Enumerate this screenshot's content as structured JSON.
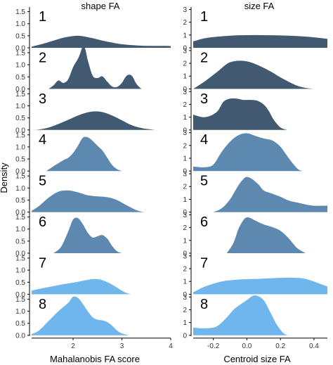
{
  "chart_data": [
    {
      "type": "area",
      "title": "shape FA",
      "xlabel": "Mahalanobis FA score",
      "ylabel": "Density",
      "xlim": [
        1.15,
        4.0
      ],
      "x_ticks": [
        2,
        3,
        4
      ],
      "x_tick_labels": [
        "2",
        "3",
        "4"
      ],
      "y_ticks": [
        0.0,
        0.5,
        1.0,
        1.5
      ],
      "y_tick_labels": [
        "0.0",
        "0.5",
        "1.0",
        "1.5"
      ],
      "ylim": [
        0,
        1.75
      ],
      "grid": false,
      "series": [
        {
          "name": "1",
          "color": "#415a72",
          "x": [
            1.15,
            1.4,
            1.6,
            1.8,
            2.0,
            2.1,
            2.2,
            2.4,
            2.6,
            2.8,
            3.0,
            3.3,
            3.6,
            3.9,
            4.0
          ],
          "values": [
            0.05,
            0.18,
            0.3,
            0.42,
            0.49,
            0.5,
            0.48,
            0.4,
            0.3,
            0.22,
            0.15,
            0.1,
            0.08,
            0.08,
            0.07
          ]
        },
        {
          "name": "2",
          "color": "#415a72",
          "x": [
            1.5,
            1.6,
            1.7,
            1.8,
            1.9,
            2.0,
            2.1,
            2.15,
            2.2,
            2.25,
            2.3,
            2.4,
            2.5,
            2.6,
            2.7,
            2.8,
            2.9,
            3.0,
            3.1,
            3.2,
            3.3,
            3.4
          ],
          "values": [
            0.0,
            0.15,
            0.35,
            0.25,
            0.4,
            0.9,
            1.25,
            1.5,
            1.78,
            1.65,
            1.2,
            0.55,
            0.45,
            0.52,
            0.3,
            0.1,
            0.08,
            0.25,
            0.55,
            0.55,
            0.2,
            0.0
          ]
        },
        {
          "name": "3",
          "color": "#415a72",
          "x": [
            1.15,
            1.3,
            1.5,
            1.7,
            1.9,
            2.1,
            2.3,
            2.45,
            2.6,
            2.8,
            3.0,
            3.2,
            3.4,
            3.6,
            3.7
          ],
          "values": [
            0.0,
            0.02,
            0.1,
            0.25,
            0.42,
            0.6,
            0.73,
            0.77,
            0.74,
            0.6,
            0.4,
            0.2,
            0.08,
            0.02,
            0.0
          ]
        },
        {
          "name": "4",
          "color": "#5d88b0",
          "x": [
            1.45,
            1.6,
            1.8,
            1.9,
            2.0,
            2.1,
            2.2,
            2.3,
            2.4,
            2.5,
            2.6,
            2.7,
            2.8,
            2.9,
            3.0
          ],
          "values": [
            0.0,
            0.2,
            0.45,
            0.55,
            0.75,
            1.05,
            1.38,
            1.4,
            1.25,
            1.05,
            0.85,
            0.55,
            0.25,
            0.08,
            0.0
          ]
        },
        {
          "name": "5",
          "color": "#5d88b0",
          "x": [
            1.15,
            1.3,
            1.5,
            1.7,
            1.9,
            2.1,
            2.3,
            2.5,
            2.7,
            2.9,
            3.1,
            3.3,
            3.45
          ],
          "values": [
            0.05,
            0.25,
            0.6,
            0.85,
            0.9,
            0.82,
            0.7,
            0.65,
            0.62,
            0.5,
            0.28,
            0.08,
            0.0
          ]
        },
        {
          "name": "6",
          "color": "#5d88b0",
          "x": [
            1.6,
            1.75,
            1.9,
            2.0,
            2.1,
            2.2,
            2.3,
            2.4,
            2.5,
            2.6,
            2.7,
            2.8,
            2.9,
            3.0
          ],
          "values": [
            0.0,
            0.25,
            0.9,
            1.4,
            1.45,
            1.2,
            0.85,
            0.65,
            0.7,
            0.75,
            0.6,
            0.3,
            0.08,
            0.0
          ]
        },
        {
          "name": "7",
          "color": "#6fb6ec",
          "x": [
            1.15,
            1.3,
            1.5,
            1.7,
            1.9,
            2.1,
            2.3,
            2.45,
            2.6,
            2.8,
            3.0,
            3.1,
            3.2
          ],
          "values": [
            0.15,
            0.22,
            0.3,
            0.38,
            0.45,
            0.52,
            0.6,
            0.63,
            0.58,
            0.4,
            0.15,
            0.05,
            0.0
          ]
        },
        {
          "name": "8",
          "color": "#6fb6ec",
          "x": [
            1.15,
            1.3,
            1.5,
            1.7,
            1.9,
            2.0,
            2.1,
            2.2,
            2.3,
            2.4,
            2.5,
            2.6,
            2.7,
            2.8,
            2.9,
            3.0,
            3.15
          ],
          "values": [
            0.05,
            0.2,
            0.6,
            1.0,
            1.35,
            1.6,
            1.55,
            1.3,
            1.0,
            0.75,
            0.65,
            0.62,
            0.55,
            0.4,
            0.2,
            0.08,
            0.0
          ]
        }
      ]
    },
    {
      "type": "area",
      "title": "size FA",
      "xlabel": "Centroid size FA",
      "ylabel": "",
      "xlim": [
        -0.32,
        0.48
      ],
      "x_ticks": [
        -0.2,
        0.0,
        0.2,
        0.4
      ],
      "x_tick_labels": [
        "-0.2",
        "0.0",
        "0.2",
        "0.4"
      ],
      "y_ticks": [
        0,
        1,
        2,
        3
      ],
      "y_tick_labels": [
        "0",
        "1",
        "2",
        "3"
      ],
      "ylim": [
        0,
        3.3
      ],
      "grid": false,
      "series": [
        {
          "name": "1",
          "color": "#415a72",
          "x": [
            -0.32,
            -0.25,
            -0.15,
            -0.05,
            0.05,
            0.15,
            0.25,
            0.35,
            0.45,
            0.48
          ],
          "values": [
            0.5,
            0.75,
            0.9,
            0.98,
            1.0,
            0.98,
            0.95,
            0.88,
            0.75,
            0.7
          ]
        },
        {
          "name": "2",
          "color": "#415a72",
          "x": [
            -0.32,
            -0.25,
            -0.18,
            -0.12,
            -0.08,
            -0.04,
            0.0,
            0.05,
            0.1,
            0.15,
            0.2,
            0.25,
            0.3,
            0.35,
            0.4
          ],
          "values": [
            0.0,
            0.6,
            1.3,
            1.95,
            2.15,
            2.2,
            2.15,
            1.95,
            1.65,
            1.3,
            0.9,
            0.55,
            0.25,
            0.08,
            0.0
          ]
        },
        {
          "name": "3",
          "color": "#415a72",
          "x": [
            -0.32,
            -0.25,
            -0.18,
            -0.14,
            -0.1,
            -0.06,
            -0.02,
            0.02,
            0.06,
            0.1,
            0.13,
            0.16,
            0.2,
            0.24
          ],
          "values": [
            1.2,
            1.0,
            1.4,
            2.2,
            2.45,
            2.45,
            2.35,
            2.35,
            2.3,
            2.0,
            1.5,
            0.8,
            0.2,
            0.0
          ]
        },
        {
          "name": "4",
          "color": "#5d88b0",
          "x": [
            -0.32,
            -0.25,
            -0.2,
            -0.15,
            -0.1,
            -0.05,
            0.0,
            0.05,
            0.1,
            0.15,
            0.2,
            0.25,
            0.3,
            0.33
          ],
          "values": [
            0.35,
            0.3,
            0.5,
            1.5,
            2.3,
            2.8,
            2.95,
            2.75,
            2.55,
            2.4,
            1.9,
            1.0,
            0.2,
            0.0
          ]
        },
        {
          "name": "5",
          "color": "#5d88b0",
          "x": [
            -0.2,
            -0.15,
            -0.1,
            -0.05,
            -0.02,
            0.0,
            0.03,
            0.07,
            0.1,
            0.15,
            0.2,
            0.25,
            0.3,
            0.35,
            0.4,
            0.45,
            0.48
          ],
          "values": [
            0.0,
            0.3,
            1.0,
            2.1,
            2.6,
            2.75,
            2.6,
            2.15,
            1.7,
            1.45,
            1.2,
            0.9,
            0.75,
            0.6,
            0.5,
            0.5,
            0.5
          ]
        },
        {
          "name": "6",
          "color": "#5d88b0",
          "x": [
            -0.12,
            -0.08,
            -0.05,
            -0.02,
            0.0,
            0.02,
            0.05,
            0.1,
            0.15,
            0.2,
            0.25,
            0.3,
            0.35
          ],
          "values": [
            0.0,
            0.8,
            1.9,
            2.6,
            2.8,
            2.75,
            2.55,
            2.25,
            2.05,
            1.75,
            1.15,
            0.4,
            0.0
          ]
        },
        {
          "name": "7",
          "color": "#6fb6ec",
          "x": [
            -0.32,
            -0.25,
            -0.15,
            -0.05,
            0.05,
            0.15,
            0.25,
            0.35,
            0.45,
            0.48
          ],
          "values": [
            0.15,
            0.6,
            1.0,
            1.15,
            1.2,
            1.25,
            1.3,
            1.2,
            0.75,
            0.6
          ]
        },
        {
          "name": "8",
          "color": "#6fb6ec",
          "x": [
            -0.32,
            -0.25,
            -0.18,
            -0.12,
            -0.08,
            -0.04,
            0.0,
            0.03,
            0.06,
            0.1,
            0.14,
            0.18,
            0.22,
            0.25
          ],
          "values": [
            0.6,
            0.55,
            0.7,
            1.4,
            2.0,
            2.4,
            2.75,
            3.05,
            3.1,
            2.75,
            1.8,
            0.8,
            0.15,
            0.0
          ]
        }
      ]
    }
  ]
}
